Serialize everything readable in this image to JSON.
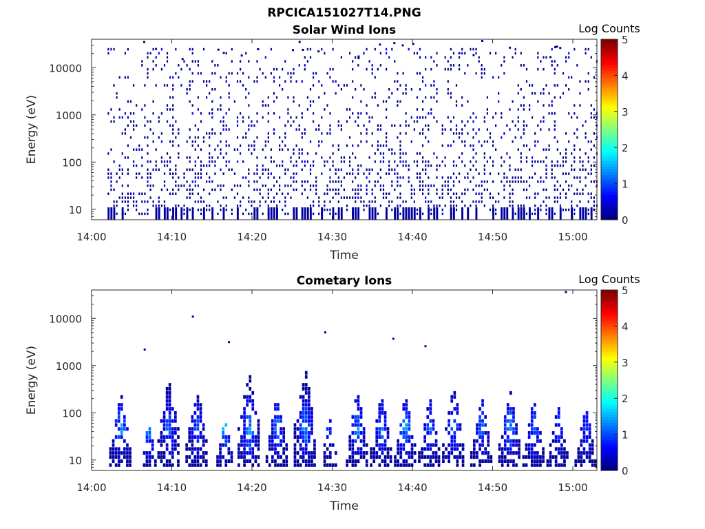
{
  "figure_title": "RPCICA151027T14.PNG",
  "chart_data": [
    {
      "type": "heatmap",
      "title": "Solar Wind Ions",
      "xlabel": "Time",
      "ylabel": "Energy (eV)",
      "x_ticks": [
        "14:00",
        "14:10",
        "14:20",
        "14:30",
        "14:40",
        "14:50",
        "15:00"
      ],
      "x_range": [
        "14:00",
        "15:03"
      ],
      "y_ticks": [
        "10",
        "100",
        "1000",
        "10000"
      ],
      "y_range": [
        6,
        40000
      ],
      "y_scale": "log",
      "colorbar": {
        "label": "Log Counts",
        "ticks": [
          "0",
          "1",
          "2",
          "3",
          "4",
          "5"
        ],
        "range": [
          0,
          5
        ],
        "colormap": "jet"
      },
      "data_start": "14:02",
      "data_end": "15:03",
      "description_of_values": "Sparse, mostly low (0-0.5 log counts) dark-blue pixels scattered from ~8 eV up to ~20000 eV across the whole interval, denser below ~100 eV."
    },
    {
      "type": "heatmap",
      "title": "Cometary Ions",
      "xlabel": "Time",
      "ylabel": "Energy (eV)",
      "x_ticks": [
        "14:00",
        "14:10",
        "14:20",
        "14:30",
        "14:40",
        "14:50",
        "15:00"
      ],
      "x_range": [
        "14:00",
        "15:03"
      ],
      "y_ticks": [
        "10",
        "100",
        "1000",
        "10000"
      ],
      "y_range": [
        6,
        40000
      ],
      "y_scale": "log",
      "colorbar": {
        "label": "Log Counts",
        "ticks": [
          "0",
          "1",
          "2",
          "3",
          "4",
          "5"
        ],
        "range": [
          0,
          5
        ],
        "colormap": "jet"
      },
      "bursts": [
        {
          "time": "14:03.5",
          "emax": 250,
          "peak": 1.5
        },
        {
          "time": "14:07.0",
          "emax": 60,
          "peak": 1.7
        },
        {
          "time": "14:09.5",
          "emax": 500,
          "peak": 1.3
        },
        {
          "time": "14:13.0",
          "emax": 350,
          "peak": 1.2
        },
        {
          "time": "14:16.5",
          "emax": 80,
          "peak": 1.7
        },
        {
          "time": "14:19.5",
          "emax": 700,
          "peak": 1.8
        },
        {
          "time": "14:23.0",
          "emax": 250,
          "peak": 1.3
        },
        {
          "time": "14:26.5",
          "emax": 800,
          "peak": 1.6
        },
        {
          "time": "14:29.5",
          "emax": 80,
          "peak": 1.0
        },
        {
          "time": "14:33.0",
          "emax": 300,
          "peak": 1.4
        },
        {
          "time": "14:36.0",
          "emax": 250,
          "peak": 1.3
        },
        {
          "time": "14:39.0",
          "emax": 250,
          "peak": 1.6
        },
        {
          "time": "14:42.0",
          "emax": 200,
          "peak": 1.2
        },
        {
          "time": "14:45.0",
          "emax": 350,
          "peak": 1.3
        },
        {
          "time": "14:48.5",
          "emax": 200,
          "peak": 1.3
        },
        {
          "time": "14:52.0",
          "emax": 300,
          "peak": 1.5
        },
        {
          "time": "14:55.0",
          "emax": 200,
          "peak": 1.3
        },
        {
          "time": "14:58.0",
          "emax": 150,
          "peak": 1.0
        },
        {
          "time": "15:01.5",
          "emax": 150,
          "peak": 1.0
        }
      ],
      "isolated_points": [
        {
          "time": "14:06.5",
          "energy": 2300
        },
        {
          "time": "14:12.5",
          "energy": 11500
        },
        {
          "time": "14:17.0",
          "energy": 3300
        },
        {
          "time": "14:29.0",
          "energy": 5300
        },
        {
          "time": "14:37.5",
          "energy": 3900
        },
        {
          "time": "14:41.5",
          "energy": 2700
        },
        {
          "time": "14:59.0",
          "energy": 38000
        }
      ]
    }
  ]
}
